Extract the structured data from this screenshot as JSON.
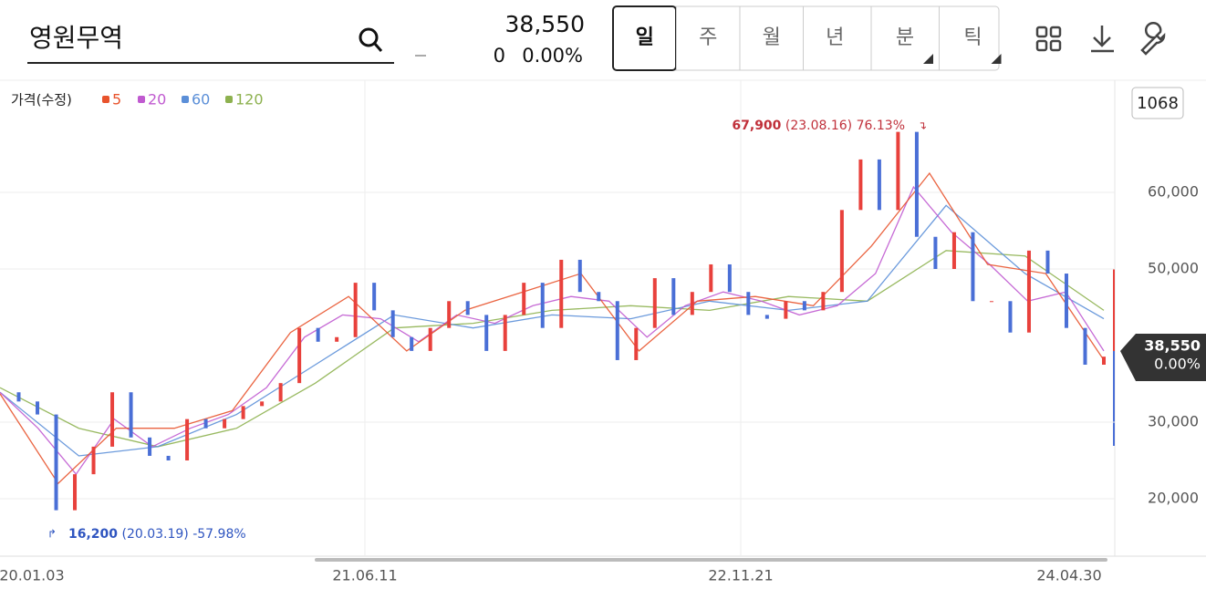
{
  "header": {
    "search": "영원무역",
    "price": "38,550",
    "change": "0",
    "change_pct": "0.00%",
    "tabs": [
      "일",
      "주",
      "월",
      "년",
      "분",
      "틱"
    ],
    "count": "1068"
  },
  "chart_data": {
    "type": "candlestick-line",
    "legend_title": "가격(수정)",
    "ylim": [
      12500,
      74643
    ],
    "yticks": [
      {
        "value": 60000,
        "label": "60,000"
      },
      {
        "value": 50000,
        "label": "50,000"
      },
      {
        "value": 30000,
        "label": "30,000"
      },
      {
        "value": 20000,
        "label": "20,000"
      }
    ],
    "xticks": [
      "20.01.03",
      "21.06.11",
      "22.11.21",
      "24.04.30"
    ],
    "grid": true,
    "price": {
      "up_color": "#e8413c",
      "down_color": "#4a6fd6",
      "values": [
        33900,
        32700,
        31000,
        18500,
        23200,
        26800,
        33900,
        28000,
        25600,
        25000,
        30400,
        29200,
        30400,
        32100,
        32700,
        35100,
        42300,
        40500,
        41100,
        48200,
        44600,
        41100,
        39300,
        42300,
        45800,
        44000,
        39300,
        44000,
        48200,
        42300,
        51200,
        47000,
        45800,
        38100,
        42300,
        48800,
        44000,
        47000,
        50600,
        47000,
        44000,
        43500,
        45800,
        44600,
        47000,
        57700,
        64300,
        57700,
        67900,
        54200,
        50000,
        54800,
        45800,
        45800,
        41700,
        52400,
        49400,
        42300,
        37500,
        38550
      ]
    },
    "series": [
      {
        "name": "5",
        "color": "#e8532c",
        "values": [
          33700,
          22000,
          29200,
          29200,
          31500,
          41700,
          46400,
          39300,
          44600,
          47000,
          49400,
          39300,
          45800,
          46400,
          45200,
          53000,
          62500,
          50600,
          49400,
          38100
        ]
      },
      {
        "name": "20",
        "color": "#c05ad0",
        "values": [
          33900,
          29200,
          23200,
          30400,
          26800,
          29200,
          31000,
          34500,
          41100,
          44000,
          43500,
          40500,
          44000,
          42900,
          45200,
          46400,
          45800,
          41100,
          45200,
          47000,
          45800,
          44000,
          45200,
          49400,
          60700,
          54800,
          50600,
          45800,
          47000,
          39300
        ]
      },
      {
        "name": "60",
        "color": "#5b8fd8",
        "values": [
          33900,
          25600,
          26800,
          31000,
          37500,
          44000,
          42300,
          44000,
          43500,
          45800,
          44600,
          45800,
          58300,
          49400,
          43500
        ]
      },
      {
        "name": "120",
        "color": "#8db14f",
        "values": [
          34500,
          29200,
          26800,
          29200,
          35100,
          42300,
          42900,
          44600,
          45200,
          44600,
          46400,
          45800,
          52400,
          51700,
          44600
        ]
      }
    ],
    "annotations": {
      "max": {
        "price": "67,900",
        "date": "(23.08.16)",
        "pct": "76.13%"
      },
      "min": {
        "price": "16,200",
        "date": "(20.03.19)",
        "pct": "-57.98%"
      },
      "last": {
        "price": "38,550",
        "pct": "0.00%"
      }
    }
  }
}
